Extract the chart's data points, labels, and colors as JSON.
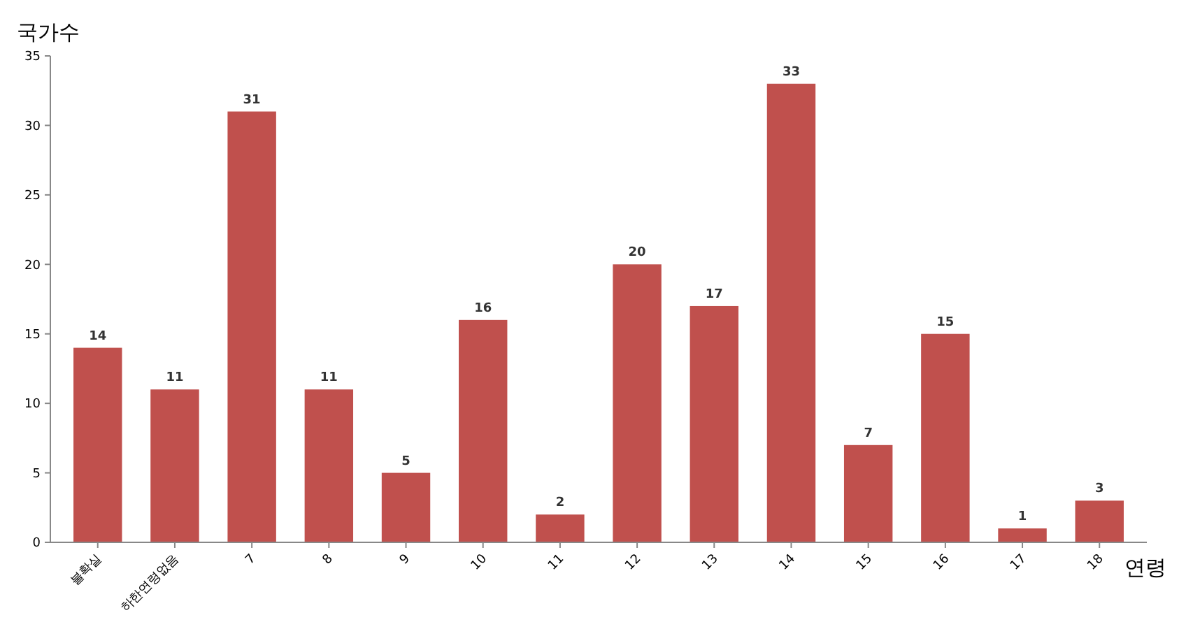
{
  "chart_data": {
    "type": "bar",
    "ylabel": "국가수",
    "xlabel": "연령",
    "categories": [
      "불확실",
      "하한연령없음",
      "7",
      "8",
      "9",
      "10",
      "11",
      "12",
      "13",
      "14",
      "15",
      "16",
      "17",
      "18"
    ],
    "values": [
      14,
      11,
      31,
      11,
      5,
      16,
      2,
      20,
      17,
      33,
      7,
      15,
      1,
      3
    ],
    "color": "#c0504d",
    "ylim": [
      0,
      35
    ],
    "yticks": [
      0,
      5,
      10,
      15,
      20,
      25,
      30,
      35
    ],
    "grid": false,
    "data_labels": true
  }
}
